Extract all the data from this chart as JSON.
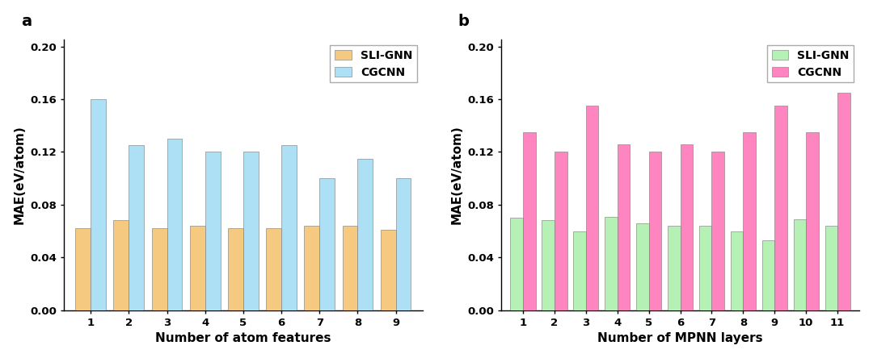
{
  "chart_a": {
    "title": "a",
    "xlabel": "Number of atom features",
    "ylabel": "MAE(eV/atom)",
    "categories": [
      1,
      2,
      3,
      4,
      5,
      6,
      7,
      8,
      9
    ],
    "sli_gnn": [
      0.062,
      0.068,
      0.062,
      0.064,
      0.062,
      0.062,
      0.064,
      0.064,
      0.061
    ],
    "cgcnn": [
      0.16,
      0.125,
      0.13,
      0.12,
      0.12,
      0.125,
      0.1,
      0.115,
      0.1
    ],
    "sli_color": "#F5C97F",
    "cgcnn_color": "#ADE0F5",
    "ylim": [
      0.0,
      0.205
    ],
    "yticks": [
      0.0,
      0.04,
      0.08,
      0.12,
      0.16,
      0.2
    ]
  },
  "chart_b": {
    "title": "b",
    "xlabel": "Number of MPNN layers",
    "ylabel": "MAE(eV/atom)",
    "categories": [
      1,
      2,
      3,
      4,
      5,
      6,
      7,
      8,
      9,
      10,
      11
    ],
    "sli_gnn": [
      0.07,
      0.068,
      0.06,
      0.071,
      0.066,
      0.064,
      0.064,
      0.06,
      0.053,
      0.069,
      0.064
    ],
    "cgcnn": [
      0.135,
      0.12,
      0.155,
      0.126,
      0.12,
      0.126,
      0.12,
      0.135,
      0.155,
      0.135,
      0.165
    ],
    "sli_color": "#B5F0B5",
    "cgcnn_color": "#FF85C0",
    "ylim": [
      0.0,
      0.205
    ],
    "yticks": [
      0.0,
      0.04,
      0.08,
      0.12,
      0.16,
      0.2
    ]
  },
  "background_color": "#FFFFFF",
  "bar_width": 0.4,
  "legend_fontsize": 10,
  "axis_label_fontsize": 11,
  "tick_fontsize": 9.5,
  "title_fontsize": 14,
  "edge_color": "#777777",
  "edge_width": 0.4
}
